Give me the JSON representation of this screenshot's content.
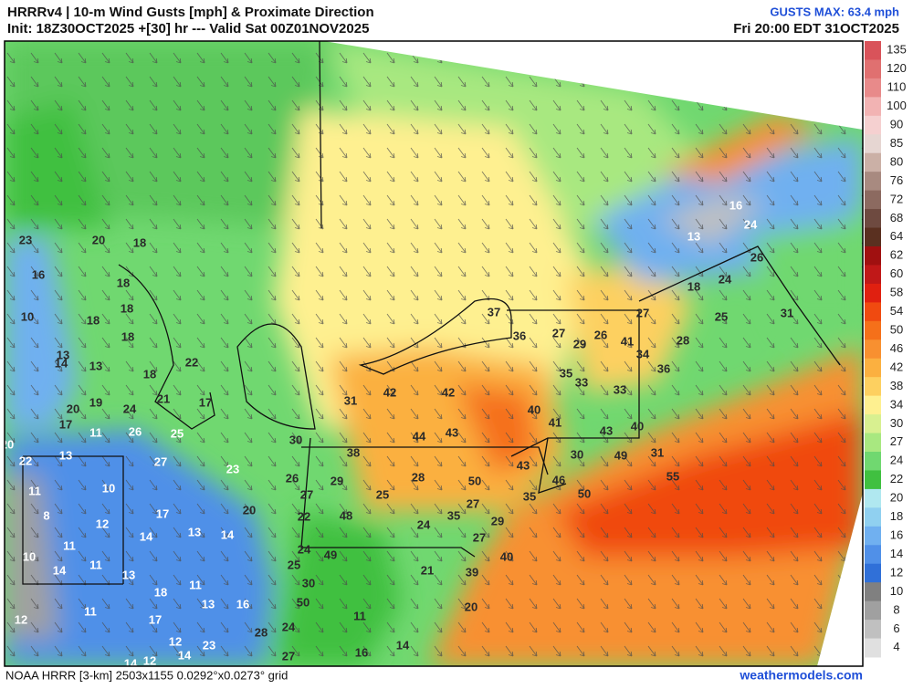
{
  "header": {
    "title": "HRRRv4 | 10-m Wind Gusts [mph] & Proximate Direction",
    "subtitle": "Init: 18Z30OCT2025 +[30] hr --- Valid Sat 00Z01NOV2025",
    "max_note": "GUSTS MAX: 63.4 mph",
    "valid_local": "Fri 20:00 EDT 31OCT2025"
  },
  "footer": {
    "grid_info": "NOAA HRRR [3-km] 2503x1155 0.0292°x0.0273° grid",
    "source": "weathermodels.com"
  },
  "legend": {
    "ticks": [
      135,
      120,
      110,
      100,
      90,
      85,
      80,
      76,
      72,
      68,
      64,
      62,
      60,
      58,
      54,
      50,
      46,
      42,
      38,
      34,
      30,
      27,
      24,
      22,
      20,
      18,
      16,
      14,
      12,
      10,
      8,
      6,
      4
    ],
    "colors": [
      "#d9535a",
      "#e07070",
      "#e88a8a",
      "#f2b3b3",
      "#f5d0d0",
      "#e6d6d2",
      "#cbb0a6",
      "#a88a80",
      "#8c6a60",
      "#6e4a40",
      "#5a3020",
      "#a01010",
      "#c01818",
      "#e02010",
      "#f04a10",
      "#f5701a",
      "#f89030",
      "#fbb040",
      "#fdd060",
      "#fef090",
      "#d8f090",
      "#a8e880",
      "#70d870",
      "#40c040",
      "#b0e8f0",
      "#90d0f0",
      "#70b0f0",
      "#5090e8",
      "#3070d8",
      "#808080",
      "#a0a0a0",
      "#c0c0c0",
      "#e0e0e0"
    ]
  },
  "map_labels": [
    "23",
    "20",
    "18",
    "16",
    "18",
    "10",
    "18",
    "18",
    "18",
    "13",
    "14",
    "13",
    "18",
    "22",
    "24",
    "21",
    "17",
    "19",
    "20",
    "17",
    "11",
    "26",
    "25",
    "20",
    "13",
    "22",
    "27",
    "23",
    "30",
    "11",
    "10",
    "8",
    "12",
    "17",
    "20",
    "10",
    "11",
    "14",
    "11",
    "14",
    "13",
    "14",
    "13",
    "18",
    "11",
    "13",
    "11",
    "12",
    "17",
    "12",
    "14",
    "16",
    "23",
    "28",
    "24",
    "27",
    "12",
    "14",
    "16",
    "14",
    "11",
    "50",
    "30",
    "49",
    "25",
    "24",
    "22",
    "27",
    "26",
    "29",
    "25",
    "48",
    "38",
    "28",
    "50",
    "24",
    "35",
    "27",
    "29",
    "27",
    "40",
    "39",
    "21",
    "20",
    "35",
    "46",
    "50",
    "43",
    "30",
    "49",
    "31",
    "55",
    "41",
    "40",
    "43",
    "40",
    "44",
    "43",
    "31",
    "42",
    "42",
    "37",
    "36",
    "27",
    "29",
    "26",
    "41",
    "34",
    "35",
    "33",
    "33",
    "36",
    "28",
    "27",
    "25",
    "31",
    "18",
    "24",
    "26",
    "24",
    "16",
    "13"
  ]
}
